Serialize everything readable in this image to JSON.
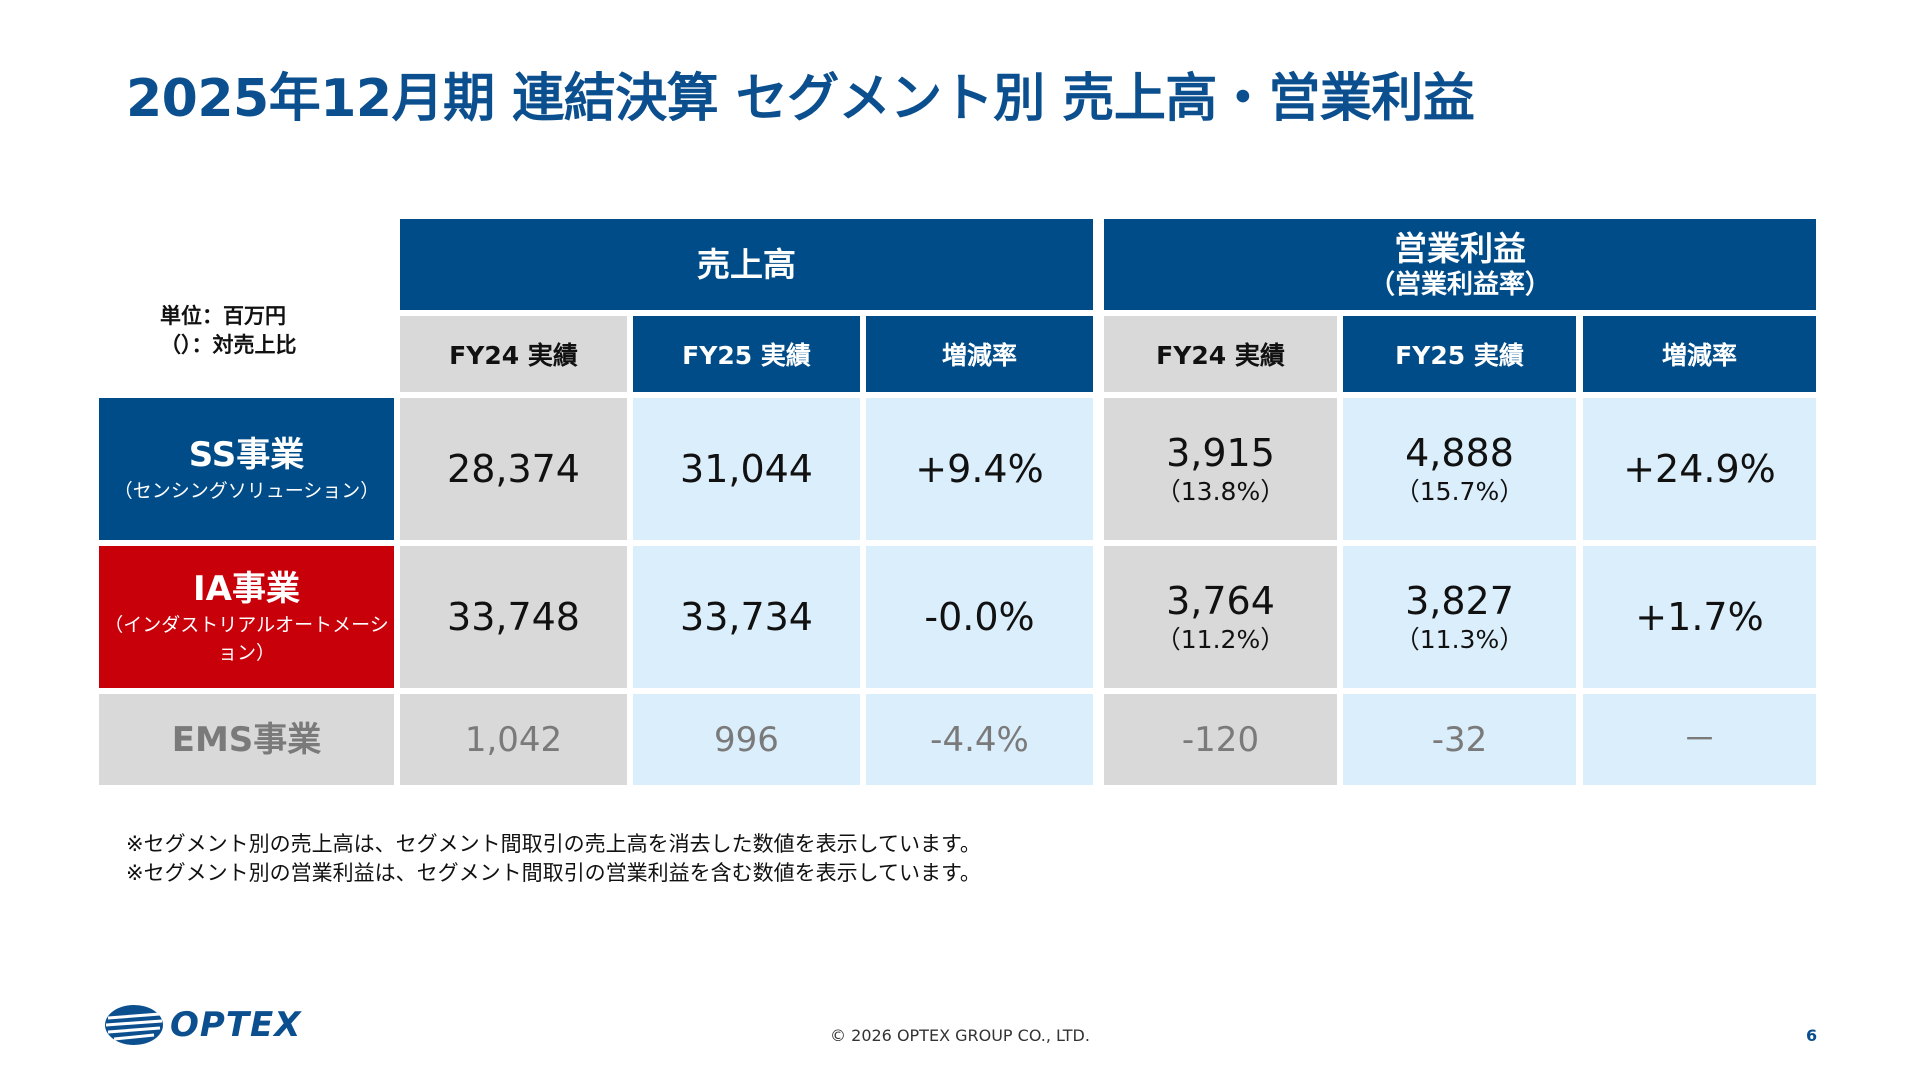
{
  "title": "2025年12月期 連結決算 セグメント別 売上高・営業利益",
  "unit": {
    "line1": "単位：百万円",
    "line2": "（）：対売上比"
  },
  "headers": {
    "sales": "売上高",
    "op_profit": "営業利益",
    "op_profit_sub": "（営業利益率）",
    "fy24": "FY24 実績",
    "fy25": "FY25 実績",
    "change": "増減率"
  },
  "rows": [
    {
      "segment": "SS事業",
      "segment_sub": "（センシングソリューション）",
      "sales_fy24": "28,374",
      "sales_fy25": "31,044",
      "sales_change": "+9.4%",
      "op_fy24": "3,915",
      "op_fy24_ratio": "（13.8%）",
      "op_fy25": "4,888",
      "op_fy25_ratio": "（15.7%）",
      "op_change": "+24.9%"
    },
    {
      "segment": "IA事業",
      "segment_sub": "（インダストリアルオートメーション）",
      "sales_fy24": "33,748",
      "sales_fy25": "33,734",
      "sales_change": "-0.0%",
      "op_fy24": "3,764",
      "op_fy24_ratio": "（11.2%）",
      "op_fy25": "3,827",
      "op_fy25_ratio": "（11.3%）",
      "op_change": "+1.7%"
    },
    {
      "segment": "EMS事業",
      "sales_fy24": "1,042",
      "sales_fy25": "996",
      "sales_change": "-4.4%",
      "op_fy24": "-120",
      "op_fy25": "-32",
      "op_change": "－"
    }
  ],
  "notes": [
    "※セグメント別の売上高は、セグメント間取引の売上高を消去した数値を表示しています。",
    "※セグメント別の営業利益は、セグメント間取引の営業利益を含む数値を表示しています。"
  ],
  "logo_text": "OPTEX",
  "footer": "© 2026 OPTEX GROUP CO., LTD.",
  "page_number": "6",
  "colors": {
    "title": "#0b4f8f",
    "header_blue": "#004c88",
    "ia_red": "#c8000a",
    "gray_cell": "#d9d9d9",
    "light_blue_cell": "#dbeefb"
  }
}
